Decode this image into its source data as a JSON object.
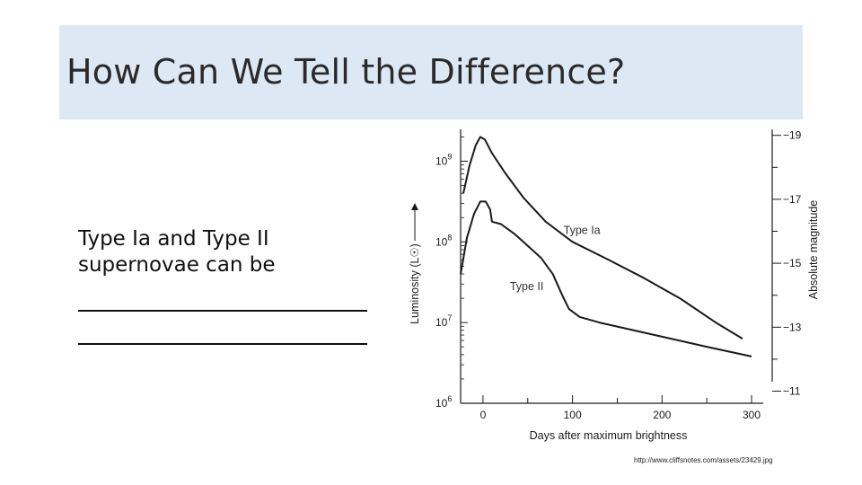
{
  "slide": {
    "title": "How Can We Tell the Difference?",
    "body_lines": [
      "Type Ia and Type II",
      "supernovae can be"
    ],
    "source": "http://www.cliffsnotes.com/assets/23429.jpg"
  },
  "chart_data": {
    "type": "line",
    "title": "",
    "xlabel": "Days after maximum brightness",
    "ylabel": "Luminosity (L☉)",
    "ylabel_right": "Absolute magnitude",
    "xlim": [
      -25,
      305
    ],
    "ylim_log10": [
      6,
      9.35
    ],
    "yscale": "log",
    "x_ticks": [
      0,
      100,
      200,
      300
    ],
    "y_ticks": [
      {
        "exp": 9,
        "label": "10",
        "sup": "9"
      },
      {
        "exp": 8,
        "label": "10",
        "sup": "8"
      },
      {
        "exp": 7,
        "label": "10",
        "sup": "7"
      },
      {
        "exp": 6,
        "label": "10",
        "sup": "6"
      }
    ],
    "right_ticks": [
      {
        "mag": -19,
        "label": "−19"
      },
      {
        "mag": -17,
        "label": "−17"
      },
      {
        "mag": -15,
        "label": "−15"
      },
      {
        "mag": -13,
        "label": "−13"
      },
      {
        "mag": -11,
        "label": "−11"
      }
    ],
    "grid": false,
    "color": "#1a1a1a",
    "series": [
      {
        "name": "Type Ia",
        "label_at": [
          90,
          8.1
        ],
        "points": [
          [
            -22,
            8.6
          ],
          [
            -15,
            8.95
          ],
          [
            -8,
            9.2
          ],
          [
            -3,
            9.3
          ],
          [
            2,
            9.27
          ],
          [
            10,
            9.1
          ],
          [
            25,
            8.85
          ],
          [
            45,
            8.55
          ],
          [
            70,
            8.25
          ],
          [
            100,
            8.0
          ],
          [
            140,
            7.78
          ],
          [
            180,
            7.55
          ],
          [
            220,
            7.3
          ],
          [
            260,
            7.0
          ],
          [
            290,
            6.8
          ]
        ]
      },
      {
        "name": "Type II",
        "label_at": [
          30,
          7.4
        ],
        "points": [
          [
            -25,
            7.6
          ],
          [
            -18,
            8.05
          ],
          [
            -10,
            8.35
          ],
          [
            -3,
            8.5
          ],
          [
            3,
            8.5
          ],
          [
            8,
            8.4
          ],
          [
            10,
            8.25
          ],
          [
            20,
            8.22
          ],
          [
            35,
            8.1
          ],
          [
            50,
            7.95
          ],
          [
            65,
            7.8
          ],
          [
            78,
            7.6
          ],
          [
            88,
            7.35
          ],
          [
            96,
            7.17
          ],
          [
            108,
            7.07
          ],
          [
            130,
            7.0
          ],
          [
            170,
            6.9
          ],
          [
            210,
            6.8
          ],
          [
            250,
            6.7
          ],
          [
            300,
            6.58
          ]
        ]
      }
    ]
  }
}
